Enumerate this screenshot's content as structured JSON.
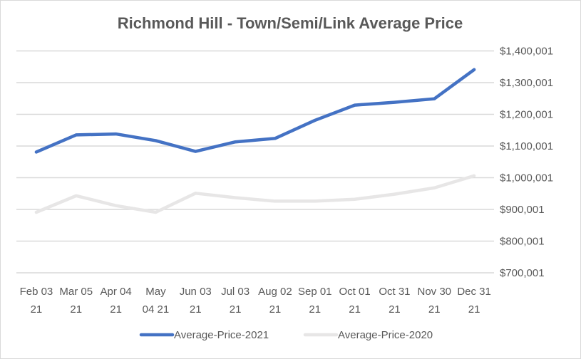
{
  "chart_data": {
    "type": "line",
    "title": "Richmond Hill - Town/Semi/Link Average Price",
    "xlabel": "",
    "ylabel": "",
    "categories": [
      [
        "Feb 03",
        "21"
      ],
      [
        "Mar 05",
        "21"
      ],
      [
        "Apr 04",
        "21"
      ],
      [
        "May",
        "04 21"
      ],
      [
        "Jun 03",
        "21"
      ],
      [
        "Jul 03",
        "21"
      ],
      [
        "Aug 02",
        "21"
      ],
      [
        "Sep 01",
        "21"
      ],
      [
        "Oct 01",
        "21"
      ],
      [
        "Oct 31",
        "21"
      ],
      [
        "Nov 30",
        "21"
      ],
      [
        "Dec 31",
        "21"
      ]
    ],
    "ylim": [
      700001,
      1400001
    ],
    "yticks": [
      700001,
      800001,
      900001,
      1000001,
      1100001,
      1200001,
      1300001,
      1400001
    ],
    "ytick_labels": [
      "$700,001",
      "$800,001",
      "$900,001",
      "$1,000,001",
      "$1,100,001",
      "$1,200,001",
      "$1,300,001",
      "$1,400,001"
    ],
    "y_axis_position": "right",
    "grid": true,
    "legend_position": "bottom",
    "series": [
      {
        "name": "Average-Price-2021",
        "color": "#4472C4",
        "values": [
          1081000,
          1135000,
          1138000,
          1117000,
          1083000,
          1113000,
          1124000,
          1181000,
          1229000,
          1238000,
          1249000,
          1341000
        ]
      },
      {
        "name": "Average-Price-2020",
        "color": "#E7E6E6",
        "values": [
          891000,
          943000,
          912000,
          891000,
          951000,
          937000,
          926000,
          926000,
          932000,
          948000,
          968000,
          1006000
        ]
      }
    ]
  }
}
